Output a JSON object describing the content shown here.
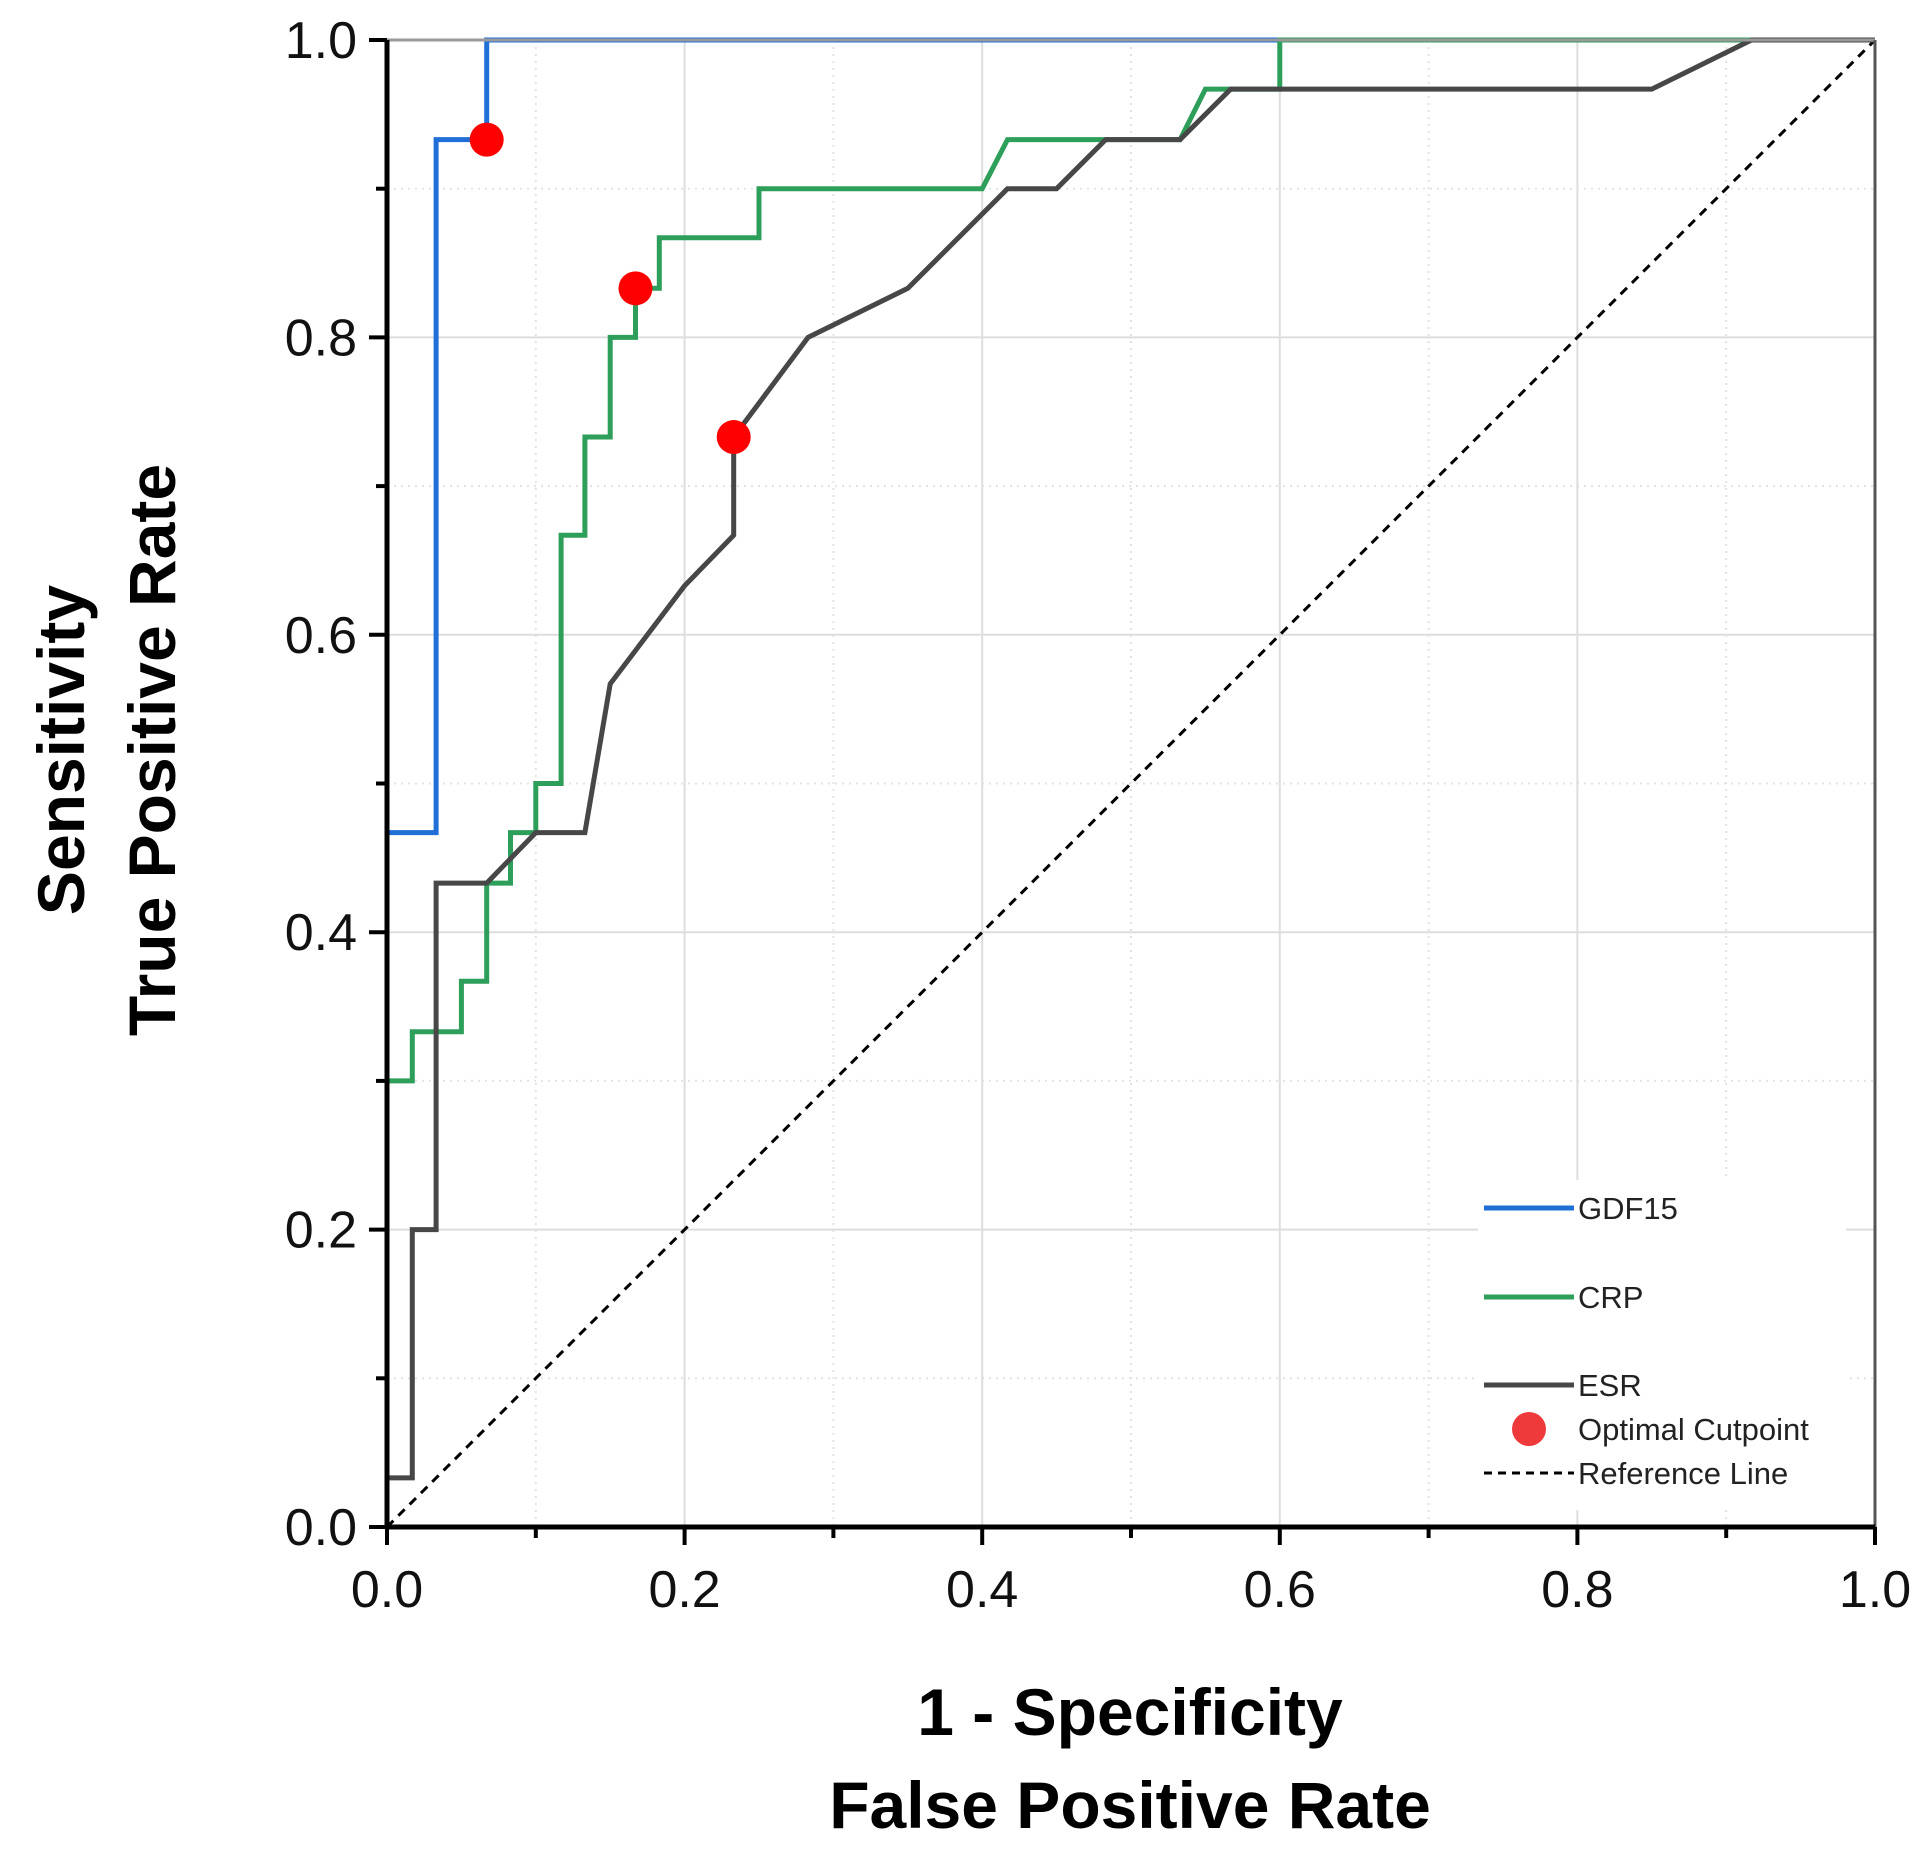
{
  "chart_data": {
    "type": "line",
    "xlabel_line1": "1 - Specificity",
    "xlabel_line2": "False Positive Rate",
    "ylabel_line1": "Sensitivity",
    "ylabel_line2": "True Positive Rate",
    "xlim": [
      0,
      1
    ],
    "ylim": [
      0,
      1
    ],
    "xticks": [
      "0.0",
      "0.2",
      "0.4",
      "0.6",
      "0.8",
      "1.0"
    ],
    "yticks": [
      "0.0",
      "0.2",
      "0.4",
      "0.6",
      "0.8",
      "1.0"
    ],
    "grid": true,
    "legend_position": "bottom-right",
    "series": [
      {
        "name": "GDF15",
        "color": "#1f6fd6",
        "points": [
          [
            0,
            0
          ],
          [
            0,
            0.467
          ],
          [
            0.033,
            0.467
          ],
          [
            0.033,
            0.933
          ],
          [
            0.067,
            0.933
          ],
          [
            0.067,
            1.0
          ],
          [
            1.0,
            1.0
          ]
        ]
      },
      {
        "name": "CRP",
        "color": "#2e9e5b",
        "points": [
          [
            0,
            0
          ],
          [
            0,
            0.3
          ],
          [
            0.017,
            0.3
          ],
          [
            0.017,
            0.333
          ],
          [
            0.05,
            0.333
          ],
          [
            0.05,
            0.367
          ],
          [
            0.067,
            0.367
          ],
          [
            0.067,
            0.433
          ],
          [
            0.083,
            0.433
          ],
          [
            0.083,
            0.467
          ],
          [
            0.1,
            0.467
          ],
          [
            0.1,
            0.5
          ],
          [
            0.117,
            0.5
          ],
          [
            0.117,
            0.667
          ],
          [
            0.133,
            0.667
          ],
          [
            0.133,
            0.733
          ],
          [
            0.15,
            0.733
          ],
          [
            0.15,
            0.8
          ],
          [
            0.167,
            0.8
          ],
          [
            0.167,
            0.833
          ],
          [
            0.183,
            0.833
          ],
          [
            0.183,
            0.867
          ],
          [
            0.25,
            0.867
          ],
          [
            0.25,
            0.9
          ],
          [
            0.4,
            0.9
          ],
          [
            0.417,
            0.933
          ],
          [
            0.483,
            0.933
          ],
          [
            0.533,
            0.933
          ],
          [
            0.55,
            0.967
          ],
          [
            0.6,
            0.967
          ],
          [
            0.6,
            1.0
          ],
          [
            1.0,
            1.0
          ]
        ]
      },
      {
        "name": "ESR",
        "color": "#474747",
        "points": [
          [
            0,
            0
          ],
          [
            0,
            0.033
          ],
          [
            0.017,
            0.033
          ],
          [
            0.017,
            0.2
          ],
          [
            0.033,
            0.2
          ],
          [
            0.033,
            0.433
          ],
          [
            0.067,
            0.433
          ],
          [
            0.1,
            0.467
          ],
          [
            0.133,
            0.467
          ],
          [
            0.15,
            0.567
          ],
          [
            0.2,
            0.633
          ],
          [
            0.233,
            0.667
          ],
          [
            0.233,
            0.733
          ],
          [
            0.283,
            0.8
          ],
          [
            0.35,
            0.833
          ],
          [
            0.417,
            0.9
          ],
          [
            0.45,
            0.9
          ],
          [
            0.483,
            0.933
          ],
          [
            0.533,
            0.933
          ],
          [
            0.567,
            0.967
          ],
          [
            0.85,
            0.967
          ],
          [
            0.917,
            1.0
          ],
          [
            1.0,
            1.0
          ]
        ]
      }
    ],
    "cutpoints": [
      {
        "series": "GDF15",
        "x": 0.067,
        "y": 0.933
      },
      {
        "series": "CRP",
        "x": 0.167,
        "y": 0.833
      },
      {
        "series": "ESR",
        "x": 0.233,
        "y": 0.733
      }
    ],
    "cutpoint_color": "#ff0000",
    "cutpoint_legend_color": "#ee3a3a",
    "reference_line": {
      "name": "Reference Line",
      "from": [
        0,
        0
      ],
      "to": [
        1,
        1
      ]
    },
    "legend": [
      {
        "label": "GDF15",
        "kind": "line",
        "color": "#1f6fd6"
      },
      {
        "label": "CRP",
        "kind": "line",
        "color": "#2e9e5b"
      },
      {
        "label": "ESR",
        "kind": "line",
        "color": "#474747"
      },
      {
        "label": "Optimal Cutpoint",
        "kind": "marker",
        "color": "#ee3a3a"
      },
      {
        "label": "Reference Line",
        "kind": "dashed",
        "color": "#000000"
      }
    ]
  }
}
